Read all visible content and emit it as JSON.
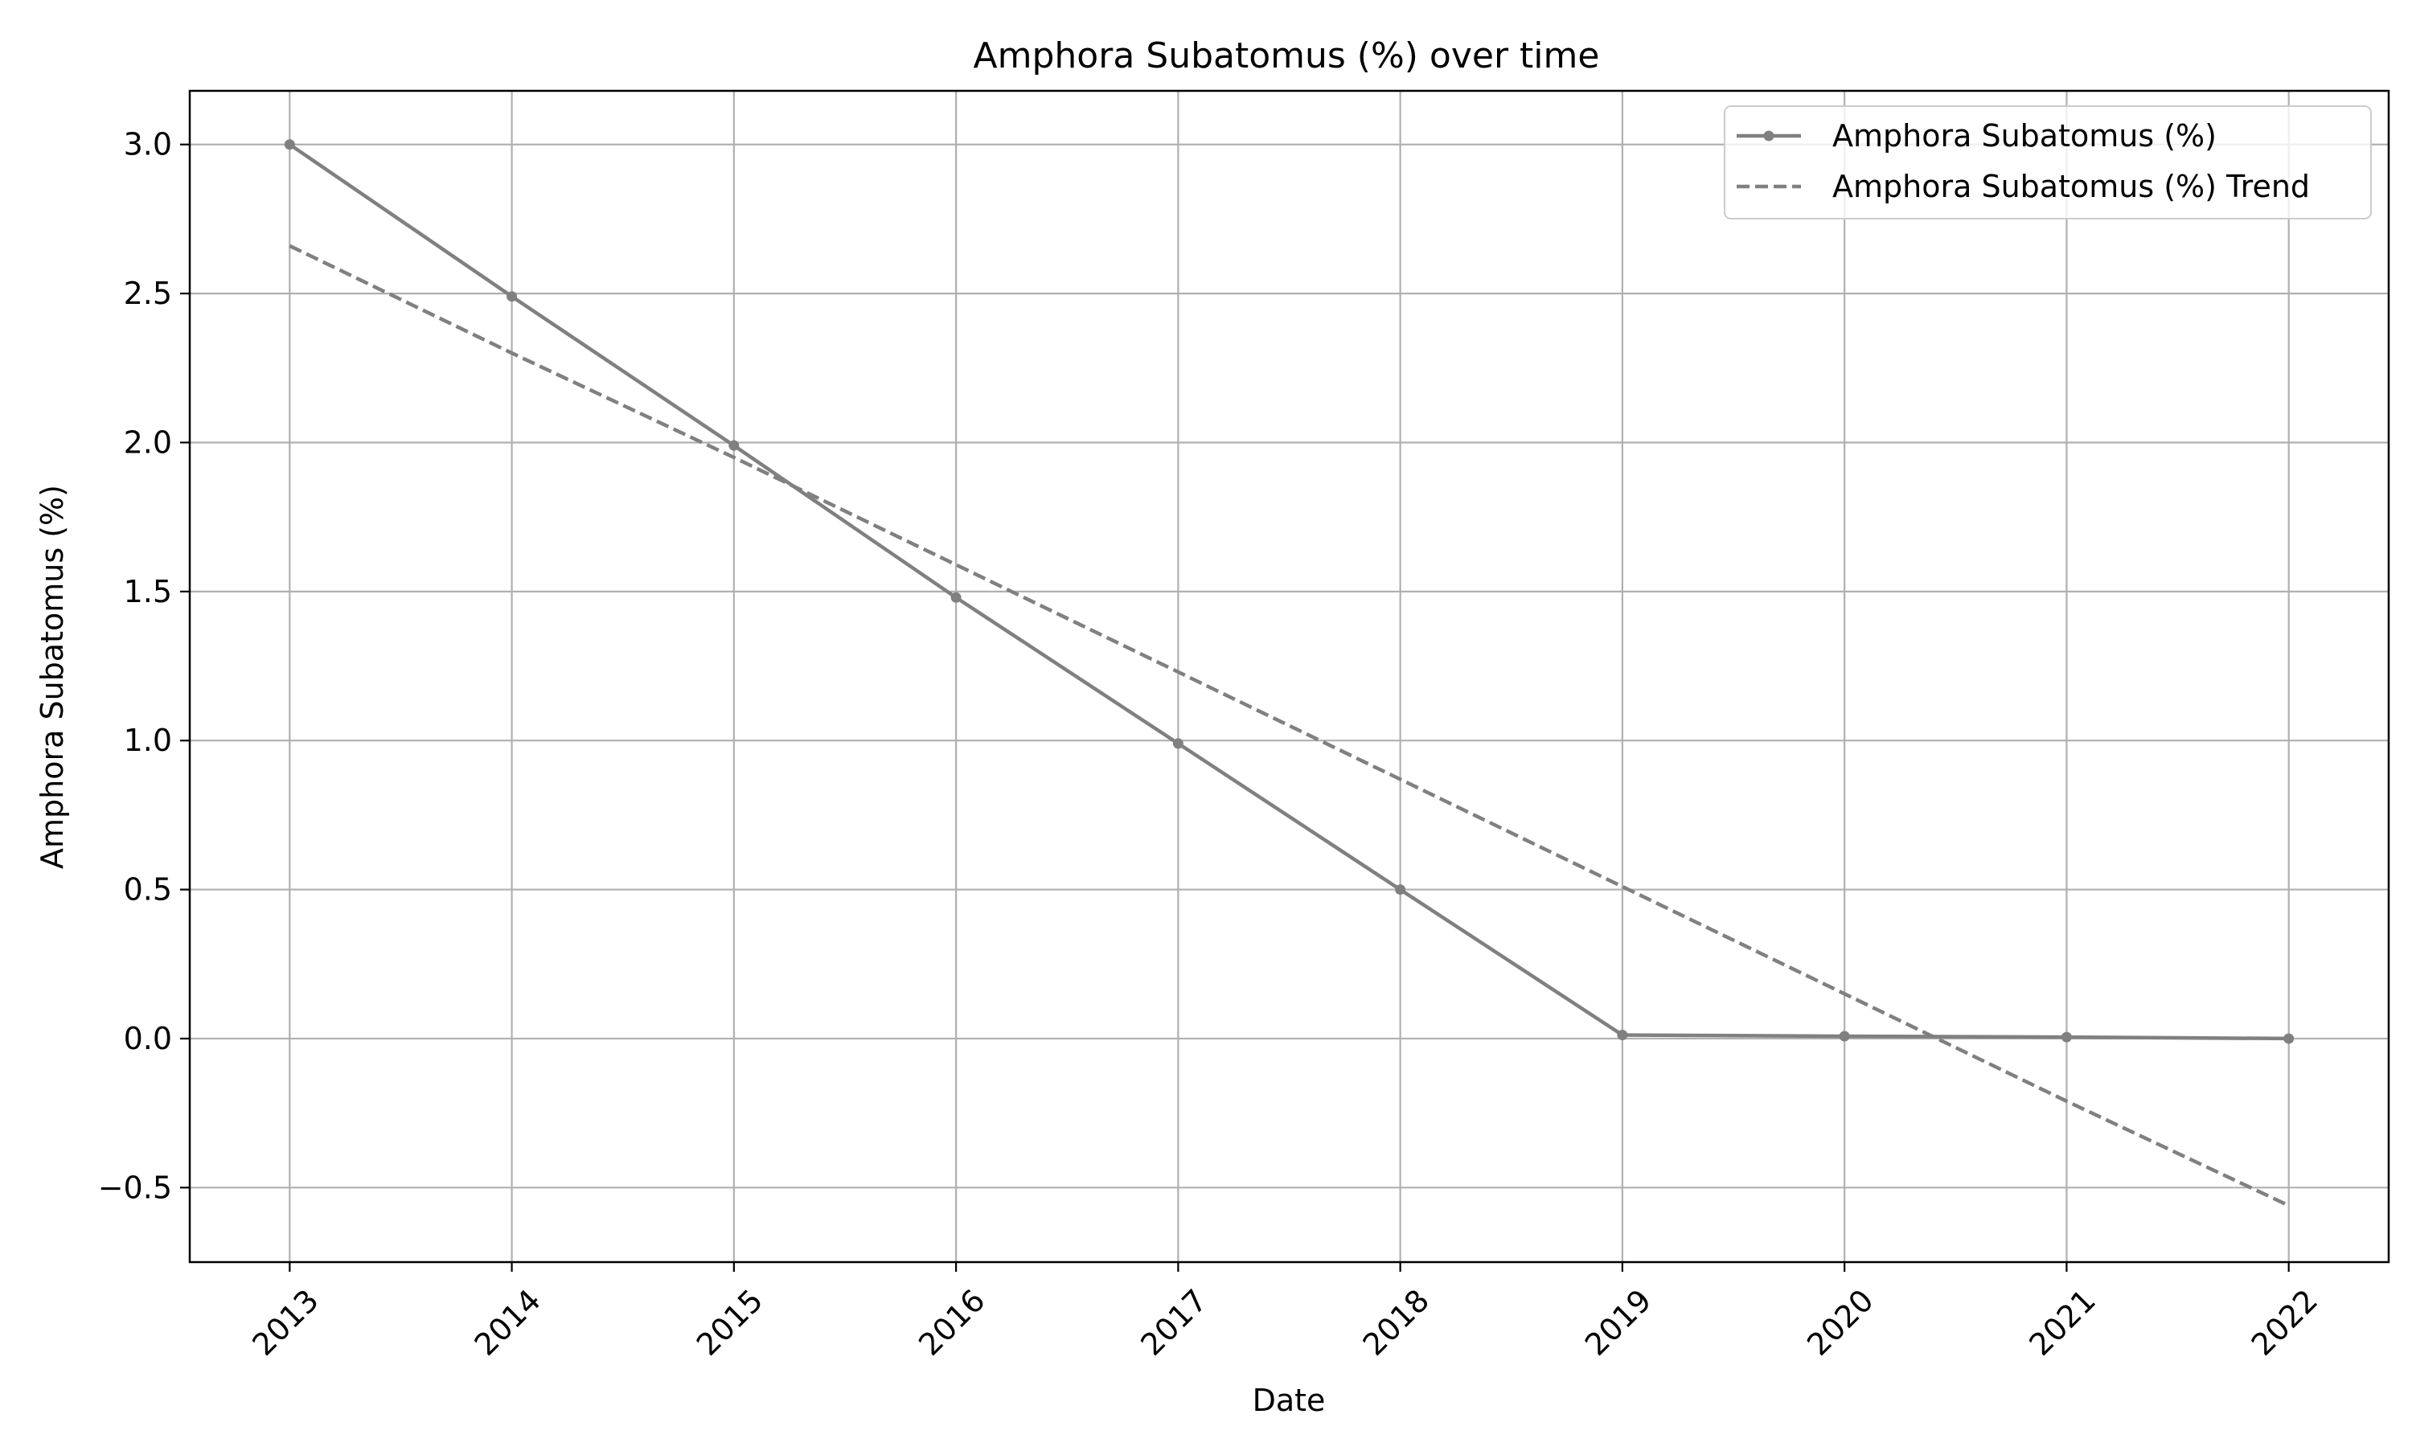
{
  "chart_data": {
    "type": "line",
    "title": "Amphora Subatomus (%) over time",
    "xlabel": "Date",
    "ylabel": "Amphora Subatomus (%)",
    "x": [
      2013,
      2014,
      2015,
      2016,
      2017,
      2018,
      2019,
      2020,
      2021,
      2022
    ],
    "x_tick_labels": [
      "2013",
      "2014",
      "2015",
      "2016",
      "2017",
      "2018",
      "2019",
      "2020",
      "2021",
      "2022"
    ],
    "xlim": [
      2012.55,
      2022.45
    ],
    "ylim": [
      -0.75,
      3.18
    ],
    "y_ticks": [
      -0.5,
      0.0,
      0.5,
      1.0,
      1.5,
      2.0,
      2.5,
      3.0
    ],
    "y_tick_labels": [
      "−0.5",
      "0.0",
      "0.5",
      "1.0",
      "1.5",
      "2.0",
      "2.5",
      "3.0"
    ],
    "grid": true,
    "legend_position": "top-right",
    "series": [
      {
        "name": "Amphora Subatomus (%)",
        "style": "solid-with-markers",
        "color": "#808080",
        "values": [
          3.0,
          2.49,
          1.99,
          1.48,
          0.99,
          0.5,
          0.012,
          0.008,
          0.005,
          0.0
        ]
      },
      {
        "name": "Amphora Subatomus (%) Trend",
        "style": "dashed",
        "color": "#808080",
        "values": [
          2.66,
          2.3,
          1.95,
          1.59,
          1.23,
          0.87,
          0.51,
          0.15,
          -0.21,
          -0.56
        ]
      }
    ]
  }
}
